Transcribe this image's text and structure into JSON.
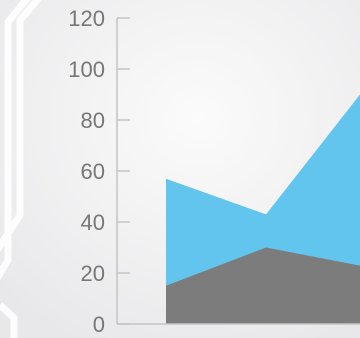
{
  "chart_data": {
    "type": "area",
    "title": "",
    "xlabel": "",
    "ylabel": "",
    "x": [
      1,
      2,
      3
    ],
    "ylim": [
      0,
      120
    ],
    "yticks": [
      0,
      20,
      40,
      60,
      80,
      100,
      120
    ],
    "series": [
      {
        "values": [
          57,
          43,
          96
        ],
        "color": "#62c5ee"
      },
      {
        "values": [
          15,
          30,
          22
        ],
        "color": "#7d7c7d"
      }
    ],
    "grid": false,
    "legend": "none"
  },
  "colors": {
    "background": "#f1f1f2",
    "axis": "#c4c4c4",
    "tick_label": "#777777",
    "decoration": "#ffffff"
  }
}
